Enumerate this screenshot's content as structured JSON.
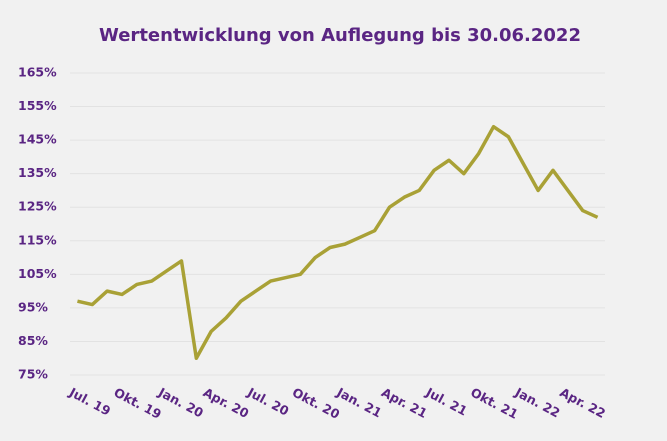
{
  "chart_data": {
    "type": "line",
    "title": "Wertentwicklung von Auflegung bis 30.06.2022",
    "x": [
      "2019-07",
      "2019-08",
      "2019-09",
      "2019-10",
      "2019-11",
      "2019-12",
      "2020-01",
      "2020-02",
      "2020-03",
      "2020-04",
      "2020-05",
      "2020-06",
      "2020-07",
      "2020-08",
      "2020-09",
      "2020-10",
      "2020-11",
      "2020-12",
      "2021-01",
      "2021-02",
      "2021-03",
      "2021-04",
      "2021-05",
      "2021-06",
      "2021-07",
      "2021-08",
      "2021-09",
      "2021-10",
      "2021-11",
      "2021-12",
      "2022-01",
      "2022-02",
      "2022-03",
      "2022-04",
      "2022-05",
      "2022-06"
    ],
    "series": [
      {
        "color": "#a9a136",
        "values": [
          97,
          96,
          100,
          99,
          102,
          103,
          106,
          109,
          80,
          88,
          92,
          97,
          100,
          103,
          104,
          105,
          110,
          113,
          114,
          116,
          118,
          125,
          128,
          130,
          136,
          139,
          135,
          141,
          149,
          146,
          138,
          130,
          136,
          130,
          124,
          122
        ]
      }
    ],
    "xticks": [
      {
        "value": "2019-07",
        "label": "Jul. 19"
      },
      {
        "value": "2019-10",
        "label": "Okt. 19"
      },
      {
        "value": "2020-01",
        "label": "Jan. 20"
      },
      {
        "value": "2020-04",
        "label": "Apr. 20"
      },
      {
        "value": "2020-07",
        "label": "Jul. 20"
      },
      {
        "value": "2020-10",
        "label": "Okt. 20"
      },
      {
        "value": "2021-01",
        "label": "Jan. 21"
      },
      {
        "value": "2021-04",
        "label": "Apr. 21"
      },
      {
        "value": "2021-07",
        "label": "Jul. 21"
      },
      {
        "value": "2021-10",
        "label": "Okt. 21"
      },
      {
        "value": "2022-01",
        "label": "Jan. 22"
      },
      {
        "value": "2022-04",
        "label": "Apr. 22"
      }
    ],
    "ylim": [
      75,
      165
    ],
    "yticks": [
      {
        "value": 75,
        "label": "75%"
      },
      {
        "value": 85,
        "label": "85%"
      },
      {
        "value": 95,
        "label": "95%"
      },
      {
        "value": 105,
        "label": "105%"
      },
      {
        "value": 115,
        "label": "115%"
      },
      {
        "value": 125,
        "label": "125%"
      },
      {
        "value": 135,
        "label": "135%"
      },
      {
        "value": 145,
        "label": "145%"
      },
      {
        "value": 155,
        "label": "155%"
      },
      {
        "value": 165,
        "label": "165%"
      }
    ],
    "grid": true
  }
}
